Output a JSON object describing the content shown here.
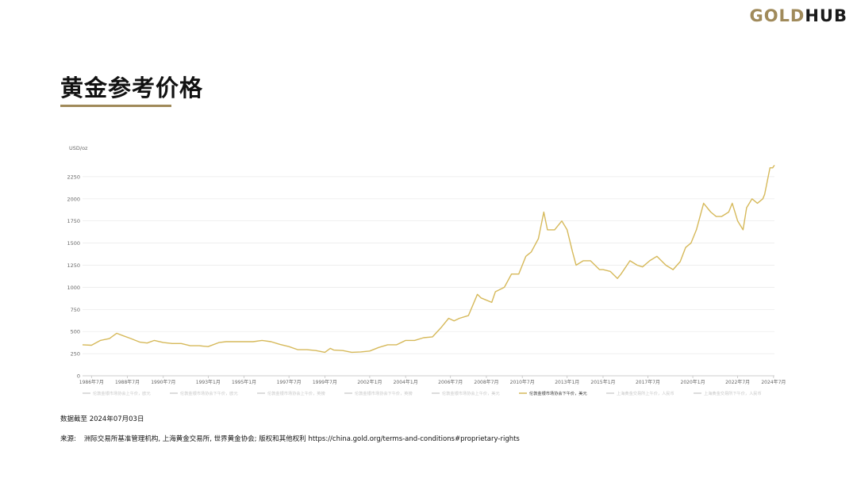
{
  "header": {
    "logo_gold": "GOLD",
    "logo_hub": "HUB",
    "title": "黄金参考价格"
  },
  "colors": {
    "accent": "#a08a5a",
    "line": "#d6b95a",
    "grid": "#e8e8e8",
    "legend_inactive": "#d0d0d0"
  },
  "chart_data": {
    "type": "line",
    "ylabel": "USD/oz",
    "ylim": [
      0,
      2500
    ],
    "yticks": [
      0,
      250,
      500,
      750,
      1000,
      1250,
      1500,
      1750,
      2000,
      2250
    ],
    "xlim": [
      1986.0,
      2024.55
    ],
    "xticks": [
      {
        "label": "1986年7月",
        "pos": 1986.5
      },
      {
        "label": "1988年7月",
        "pos": 1988.5
      },
      {
        "label": "1990年7月",
        "pos": 1990.5
      },
      {
        "label": "1993年1月",
        "pos": 1993.0
      },
      {
        "label": "1995年1月",
        "pos": 1995.0
      },
      {
        "label": "1997年7月",
        "pos": 1997.5
      },
      {
        "label": "1999年7月",
        "pos": 1999.5
      },
      {
        "label": "2002年1月",
        "pos": 2002.0
      },
      {
        "label": "2004年1月",
        "pos": 2004.0
      },
      {
        "label": "2006年7月",
        "pos": 2006.5
      },
      {
        "label": "2008年7月",
        "pos": 2008.5
      },
      {
        "label": "2010年7月",
        "pos": 2010.5
      },
      {
        "label": "2013年1月",
        "pos": 2013.0
      },
      {
        "label": "2015年1月",
        "pos": 2015.0
      },
      {
        "label": "2017年7月",
        "pos": 2017.5
      },
      {
        "label": "2020年1月",
        "pos": 2020.0
      },
      {
        "label": "2022年7月",
        "pos": 2022.5
      },
      {
        "label": "2024年7月",
        "pos": 2024.5
      }
    ],
    "grid": true,
    "legend_position": "bottom",
    "legend": [
      {
        "name": "伦敦金银市场协会上午价，欧元",
        "active": false
      },
      {
        "name": "伦敦金银市场协会下午价，欧元",
        "active": false
      },
      {
        "name": "伦敦金银市场协会上午价，英镑",
        "active": false
      },
      {
        "name": "伦敦金银市场协会下午价，英镑",
        "active": false
      },
      {
        "name": "伦敦金银市场协会上午价，美元",
        "active": false
      },
      {
        "name": "伦敦金银市场协会下午价，美元",
        "active": true
      },
      {
        "name": "上海黄金交易所上午价，人民币",
        "active": false
      },
      {
        "name": "上海黄金交易所下午价，人民币",
        "active": false
      }
    ],
    "series": [
      {
        "name": "伦敦金银市场协会下午价，美元",
        "x": [
          1986.0,
          1986.5,
          1987.0,
          1987.5,
          1987.9,
          1988.3,
          1988.7,
          1989.2,
          1989.6,
          1990.0,
          1990.5,
          1991.0,
          1991.5,
          1992.0,
          1992.5,
          1993.0,
          1993.6,
          1994.0,
          1994.5,
          1995.0,
          1995.5,
          1996.0,
          1996.5,
          1997.0,
          1997.5,
          1998.0,
          1998.5,
          1999.0,
          1999.5,
          1999.8,
          2000.0,
          2000.5,
          2001.0,
          2001.5,
          2002.0,
          2002.5,
          2003.0,
          2003.5,
          2004.0,
          2004.5,
          2005.0,
          2005.5,
          2006.0,
          2006.4,
          2006.7,
          2007.0,
          2007.5,
          2008.0,
          2008.2,
          2008.8,
          2009.0,
          2009.5,
          2009.9,
          2010.3,
          2010.7,
          2011.0,
          2011.4,
          2011.7,
          2011.9,
          2012.3,
          2012.7,
          2013.0,
          2013.3,
          2013.5,
          2013.9,
          2014.3,
          2014.8,
          2015.0,
          2015.4,
          2015.8,
          2016.0,
          2016.5,
          2016.9,
          2017.2,
          2017.6,
          2018.0,
          2018.5,
          2018.9,
          2019.3,
          2019.6,
          2019.9,
          2020.2,
          2020.6,
          2020.8,
          2021.0,
          2021.3,
          2021.6,
          2022.0,
          2022.2,
          2022.5,
          2022.8,
          2023.0,
          2023.3,
          2023.6,
          2023.9,
          2024.0,
          2024.3,
          2024.45,
          2024.55
        ],
        "y": [
          350,
          345,
          400,
          420,
          480,
          450,
          420,
          380,
          370,
          400,
          375,
          365,
          365,
          340,
          340,
          330,
          375,
          385,
          385,
          385,
          385,
          400,
          385,
          355,
          330,
          295,
          295,
          285,
          265,
          310,
          290,
          285,
          265,
          270,
          280,
          320,
          350,
          350,
          400,
          400,
          430,
          440,
          550,
          650,
          620,
          650,
          680,
          920,
          880,
          830,
          950,
          1000,
          1150,
          1150,
          1350,
          1400,
          1550,
          1850,
          1650,
          1650,
          1750,
          1650,
          1400,
          1250,
          1300,
          1300,
          1200,
          1200,
          1180,
          1100,
          1150,
          1300,
          1250,
          1230,
          1300,
          1350,
          1250,
          1200,
          1290,
          1450,
          1500,
          1650,
          1950,
          1900,
          1850,
          1800,
          1800,
          1850,
          1950,
          1750,
          1650,
          1900,
          2000,
          1950,
          2000,
          2050,
          2350,
          2350,
          2380
        ]
      }
    ]
  },
  "footer": {
    "date_note": "数据截至 2024年07月03日",
    "source_label": "来源:",
    "source_text": "洲际交易所基准管理机构, 上海黄金交易所, 世界黄金协会; 版权和其他权利 https://china.gold.org/terms-and-conditions#proprietary-rights"
  }
}
